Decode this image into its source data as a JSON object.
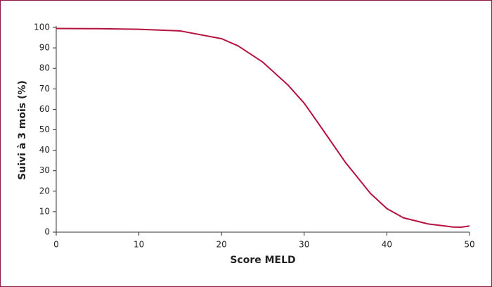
{
  "chart_data": {
    "type": "line",
    "x_label": "Score MELD",
    "y_label": "Suivi à 3 mois (%)",
    "series": [
      {
        "color": "#b5123e",
        "x": [
          0,
          5,
          10,
          15,
          20,
          22,
          25,
          28,
          30,
          32,
          35,
          38,
          40,
          42,
          45,
          48,
          49,
          50
        ],
        "values": [
          99.5,
          99.4,
          99.1,
          98.3,
          94.5,
          91,
          83,
          72,
          63,
          51.5,
          34,
          19,
          11.5,
          7,
          4,
          2.5,
          2.4,
          3
        ]
      }
    ],
    "xlim": [
      0,
      50
    ],
    "xticks": [
      0,
      10,
      20,
      30,
      40,
      50
    ],
    "ylim": [
      0,
      100
    ],
    "yticks": [
      0,
      10,
      20,
      30,
      40,
      50,
      60,
      70,
      80,
      90,
      100
    ],
    "grid": false
  }
}
